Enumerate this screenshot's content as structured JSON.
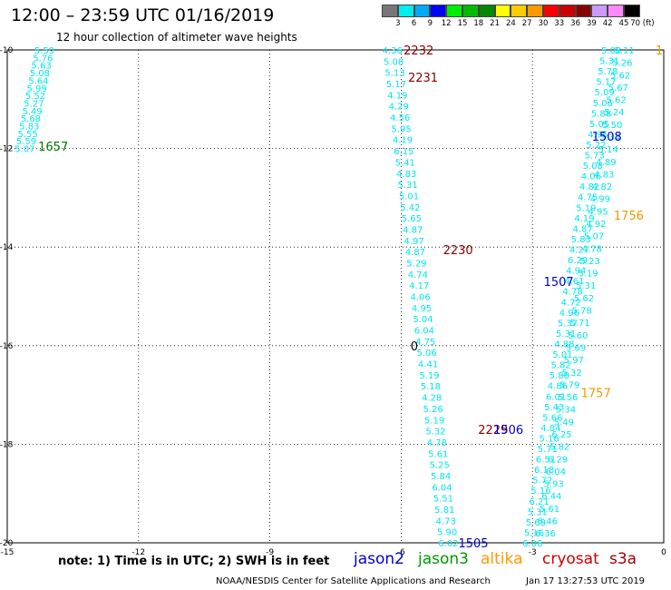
{
  "header": {
    "title": "12:00 – 23:59 UTC 01/16/2019",
    "subtitle": "12 hour collection of altimeter wave heights"
  },
  "colorbar": {
    "labels": [
      "3",
      "6",
      "9",
      "12",
      "15",
      "18",
      "21",
      "24",
      "27",
      "30",
      "33",
      "36",
      "39",
      "42",
      "45",
      "70 (ft)"
    ],
    "colors": [
      "#777777",
      "#00eeee",
      "#00aaff",
      "#0000ff",
      "#00ee00",
      "#00bb00",
      "#008800",
      "#ffff00",
      "#ffcc00",
      "#ff9900",
      "#ff0000",
      "#cc0000",
      "#880000",
      "#cc99ff",
      "#ff88ff",
      "#000000"
    ]
  },
  "footer": {
    "note": "note: 1) Time is in UTC; 2) SWH is in feet",
    "satellites": [
      {
        "name": "jason2",
        "color": "#0000cc"
      },
      {
        "name": "jason3",
        "color": "#009900"
      },
      {
        "name": "altika",
        "color": "#ff9900"
      },
      {
        "name": "cryosat",
        "color": "#cc0000"
      },
      {
        "name": "s3a",
        "color": "#990000"
      }
    ],
    "credit": "NOAA/NESDIS Center for Satellite Applications and Research",
    "timestamp": "Jan 17 13:27:53 UTC 2019"
  },
  "chart_data": {
    "type": "scatter",
    "xlim": [
      -15,
      0
    ],
    "ylim": [
      -20,
      -10
    ],
    "xticks": [
      "-15",
      "-12",
      "-9",
      "-6",
      "-3",
      "0"
    ],
    "yticks": [
      "-20",
      "-18",
      "-16",
      "-14",
      "-12",
      "-10"
    ],
    "grid": true,
    "point_color": "#00e5ee",
    "tracks": [
      {
        "id": "jason3-nw",
        "x0": -14.15,
        "y0": -10.0,
        "x1": -14.6,
        "y1": -12.0,
        "values": [
          "5.59",
          "5.76",
          "5.63",
          "5.08",
          "5.64",
          "5.99",
          "5.52",
          "5.27",
          "5.49",
          "5.68",
          "5.83",
          "5.55",
          "5.59",
          "5.07"
        ]
      },
      {
        "id": "altika-desc",
        "x0": -6.2,
        "y0": -10.0,
        "x1": -4.92,
        "y1": -20.0,
        "values": [
          "4.36",
          "5.08",
          "5.13",
          "5.17",
          "4.19",
          "4.29",
          "4.56",
          "5.95",
          "4.19",
          "6.15",
          "5.41",
          "4.83",
          "5.31",
          "5.01",
          "5.42",
          "5.65",
          "4.87",
          "4.97",
          "4.87",
          "5.29",
          "4.74",
          "4.17",
          "4.06",
          "4.95",
          "5.04",
          "6.04",
          "4.75",
          "5.06",
          "4.41",
          "5.19",
          "5.18",
          "4.28",
          "5.26",
          "5.19",
          "5.32",
          "4.78",
          "5.61",
          "5.25",
          "5.84",
          "6.04",
          "5.51",
          "5.81",
          "4.73",
          "5.90",
          "6.02"
        ]
      },
      {
        "id": "cryosat-asc",
        "x0": -3.0,
        "y0": -20.0,
        "x1": -1.2,
        "y1": -10.0,
        "values": [
          "6.06",
          "5.16",
          "5.69",
          "5.31",
          "6.21",
          "5.16",
          "5.72",
          "6.18",
          "6.51",
          "5.71",
          "5.16",
          "4.84",
          "5.66",
          "5.43",
          "6.01",
          "4.86",
          "5.88",
          "5.82",
          "5.01",
          "4.88",
          "5.31",
          "5.37",
          "4.96",
          "4.72",
          "4.78",
          "4.61",
          "4.94",
          "6.29",
          "4.27",
          "5.83",
          "4.87",
          "4.19",
          "5.19",
          "4.75",
          "4.82",
          "4.06",
          "5.08",
          "5.73",
          "5.22",
          "4.95",
          "5.05",
          "5.88",
          "5.06",
          "5.09",
          "5.17",
          "5.78",
          "5.31",
          "5.08"
        ]
      },
      {
        "id": "jason2-asc",
        "x0": -2.7,
        "y0": -19.8,
        "x1": -0.9,
        "y1": -10.0,
        "values": [
          "6.36",
          "6.46",
          "5.61",
          "6.44",
          "5.93",
          "6.04",
          "6.29",
          "5.82",
          "6.25",
          "5.49",
          "5.34",
          "5.56",
          "5.79",
          "5.32",
          "5.97",
          "5.69",
          "5.60",
          "5.71",
          "5.78",
          "5.62",
          "5.31",
          "5.19",
          "5.23",
          "4.78",
          "5.07",
          "4.92",
          "4.95",
          "4.99",
          "4.82",
          "4.83",
          "4.89",
          "5.14",
          "5.34",
          "5.50",
          "5.24",
          "5.62",
          "5.67",
          "5.62",
          "5.26",
          "5.11"
        ]
      }
    ],
    "annotations": [
      {
        "text": "1657",
        "x": -13.95,
        "y": -11.95,
        "color": "#007700"
      },
      {
        "text": "2232",
        "x": -5.6,
        "y": -10.0,
        "color": "#880000"
      },
      {
        "text": "2231",
        "x": -5.5,
        "y": -10.55,
        "color": "#880000"
      },
      {
        "text": "2230",
        "x": -4.7,
        "y": -14.05,
        "color": "#880000"
      },
      {
        "text": "2229",
        "x": -3.9,
        "y": -17.7,
        "color": "#880000"
      },
      {
        "text": "1506",
        "x": -3.55,
        "y": -17.7,
        "color": "#0000cc"
      },
      {
        "text": "1505",
        "x": -4.35,
        "y": -20.0,
        "color": "#0000cc"
      },
      {
        "text": "1507",
        "x": -2.4,
        "y": -14.7,
        "color": "#0000cc"
      },
      {
        "text": "1508",
        "x": -1.3,
        "y": -11.75,
        "color": "#0000cc"
      },
      {
        "text": "1756",
        "x": -0.8,
        "y": -13.35,
        "color": "#ee9900"
      },
      {
        "text": "1757",
        "x": -1.55,
        "y": -16.95,
        "color": "#ee9900"
      },
      {
        "text": "1",
        "x": -0.1,
        "y": -10.0,
        "color": "#ee9900"
      },
      {
        "text": "0",
        "x": -5.7,
        "y": -16.0,
        "color": "#000000"
      }
    ]
  }
}
